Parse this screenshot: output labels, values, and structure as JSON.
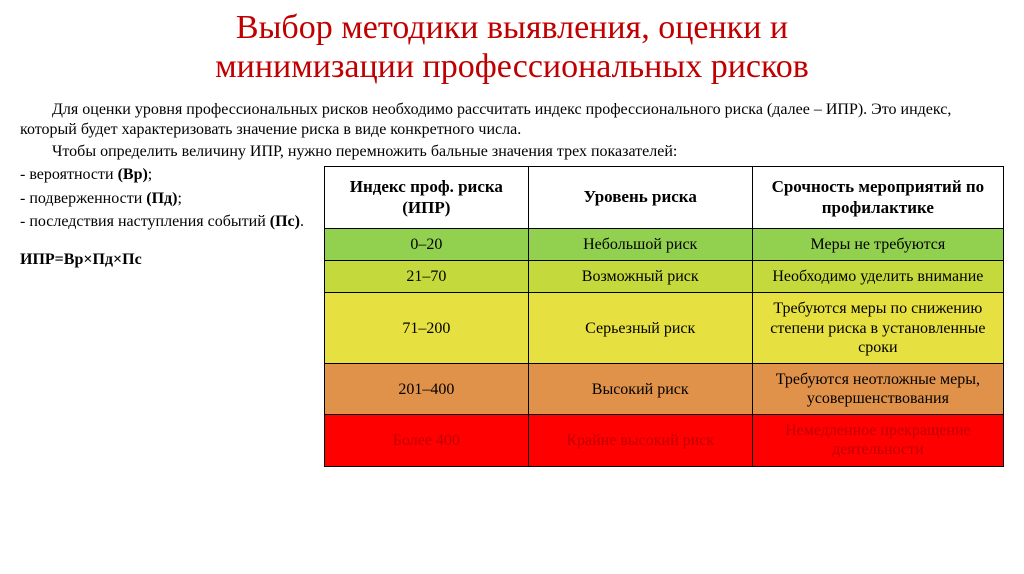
{
  "title_color": "#c00000",
  "title_line1": "Выбор методики выявления, оценки и",
  "title_line2": "минимизации профессиональных рисков",
  "intro": {
    "p1": "Для оценки уровня профессиональных рисков необходимо рассчитать индекс профессионального риска (далее – ИПР). Это индекс, который будет характеризовать значение риска в виде конкретного числа.",
    "p2": "Чтобы определить величину ИПР, нужно перемножить бальные значения трех показателей:"
  },
  "bullets": {
    "b1_pre": "- вероятности ",
    "b1_bold": "(Вр)",
    "b2_pre": "- подверженности ",
    "b2_bold": "(Пд)",
    "b3_pre": "- последствия наступления событий ",
    "b3_bold": "(Пс)"
  },
  "formula": "ИПР=Вр×Пд×Пс",
  "table": {
    "headers": {
      "c0": "Индекс проф. риска (ИПР)",
      "c1": "Уровень риска",
      "c2": "Срочность мероприятий по профилактике"
    },
    "rows": [
      {
        "range": "0–20",
        "level": "Небольшой риск",
        "action": "Меры не требуются",
        "bg": "#92d050"
      },
      {
        "range": "21–70",
        "level": "Возможный риск",
        "action": "Необходимо уделить внимание",
        "bg": "#c4d93b"
      },
      {
        "range": "71–200",
        "level": "Серьезный риск",
        "action": "Требуются меры по снижению степени риска в установленные сроки",
        "bg": "#e6e040"
      },
      {
        "range": "201–400",
        "level": "Высокий риск",
        "action": "Требуются неотложные меры, усовершенствования",
        "bg": "#e0924a"
      },
      {
        "range": "Более 400",
        "level": "Крайне высокий риск",
        "action": "Немедленное прекращение деятельности",
        "bg": "#ff0000"
      }
    ],
    "row_last_text_color": "#c00000"
  }
}
